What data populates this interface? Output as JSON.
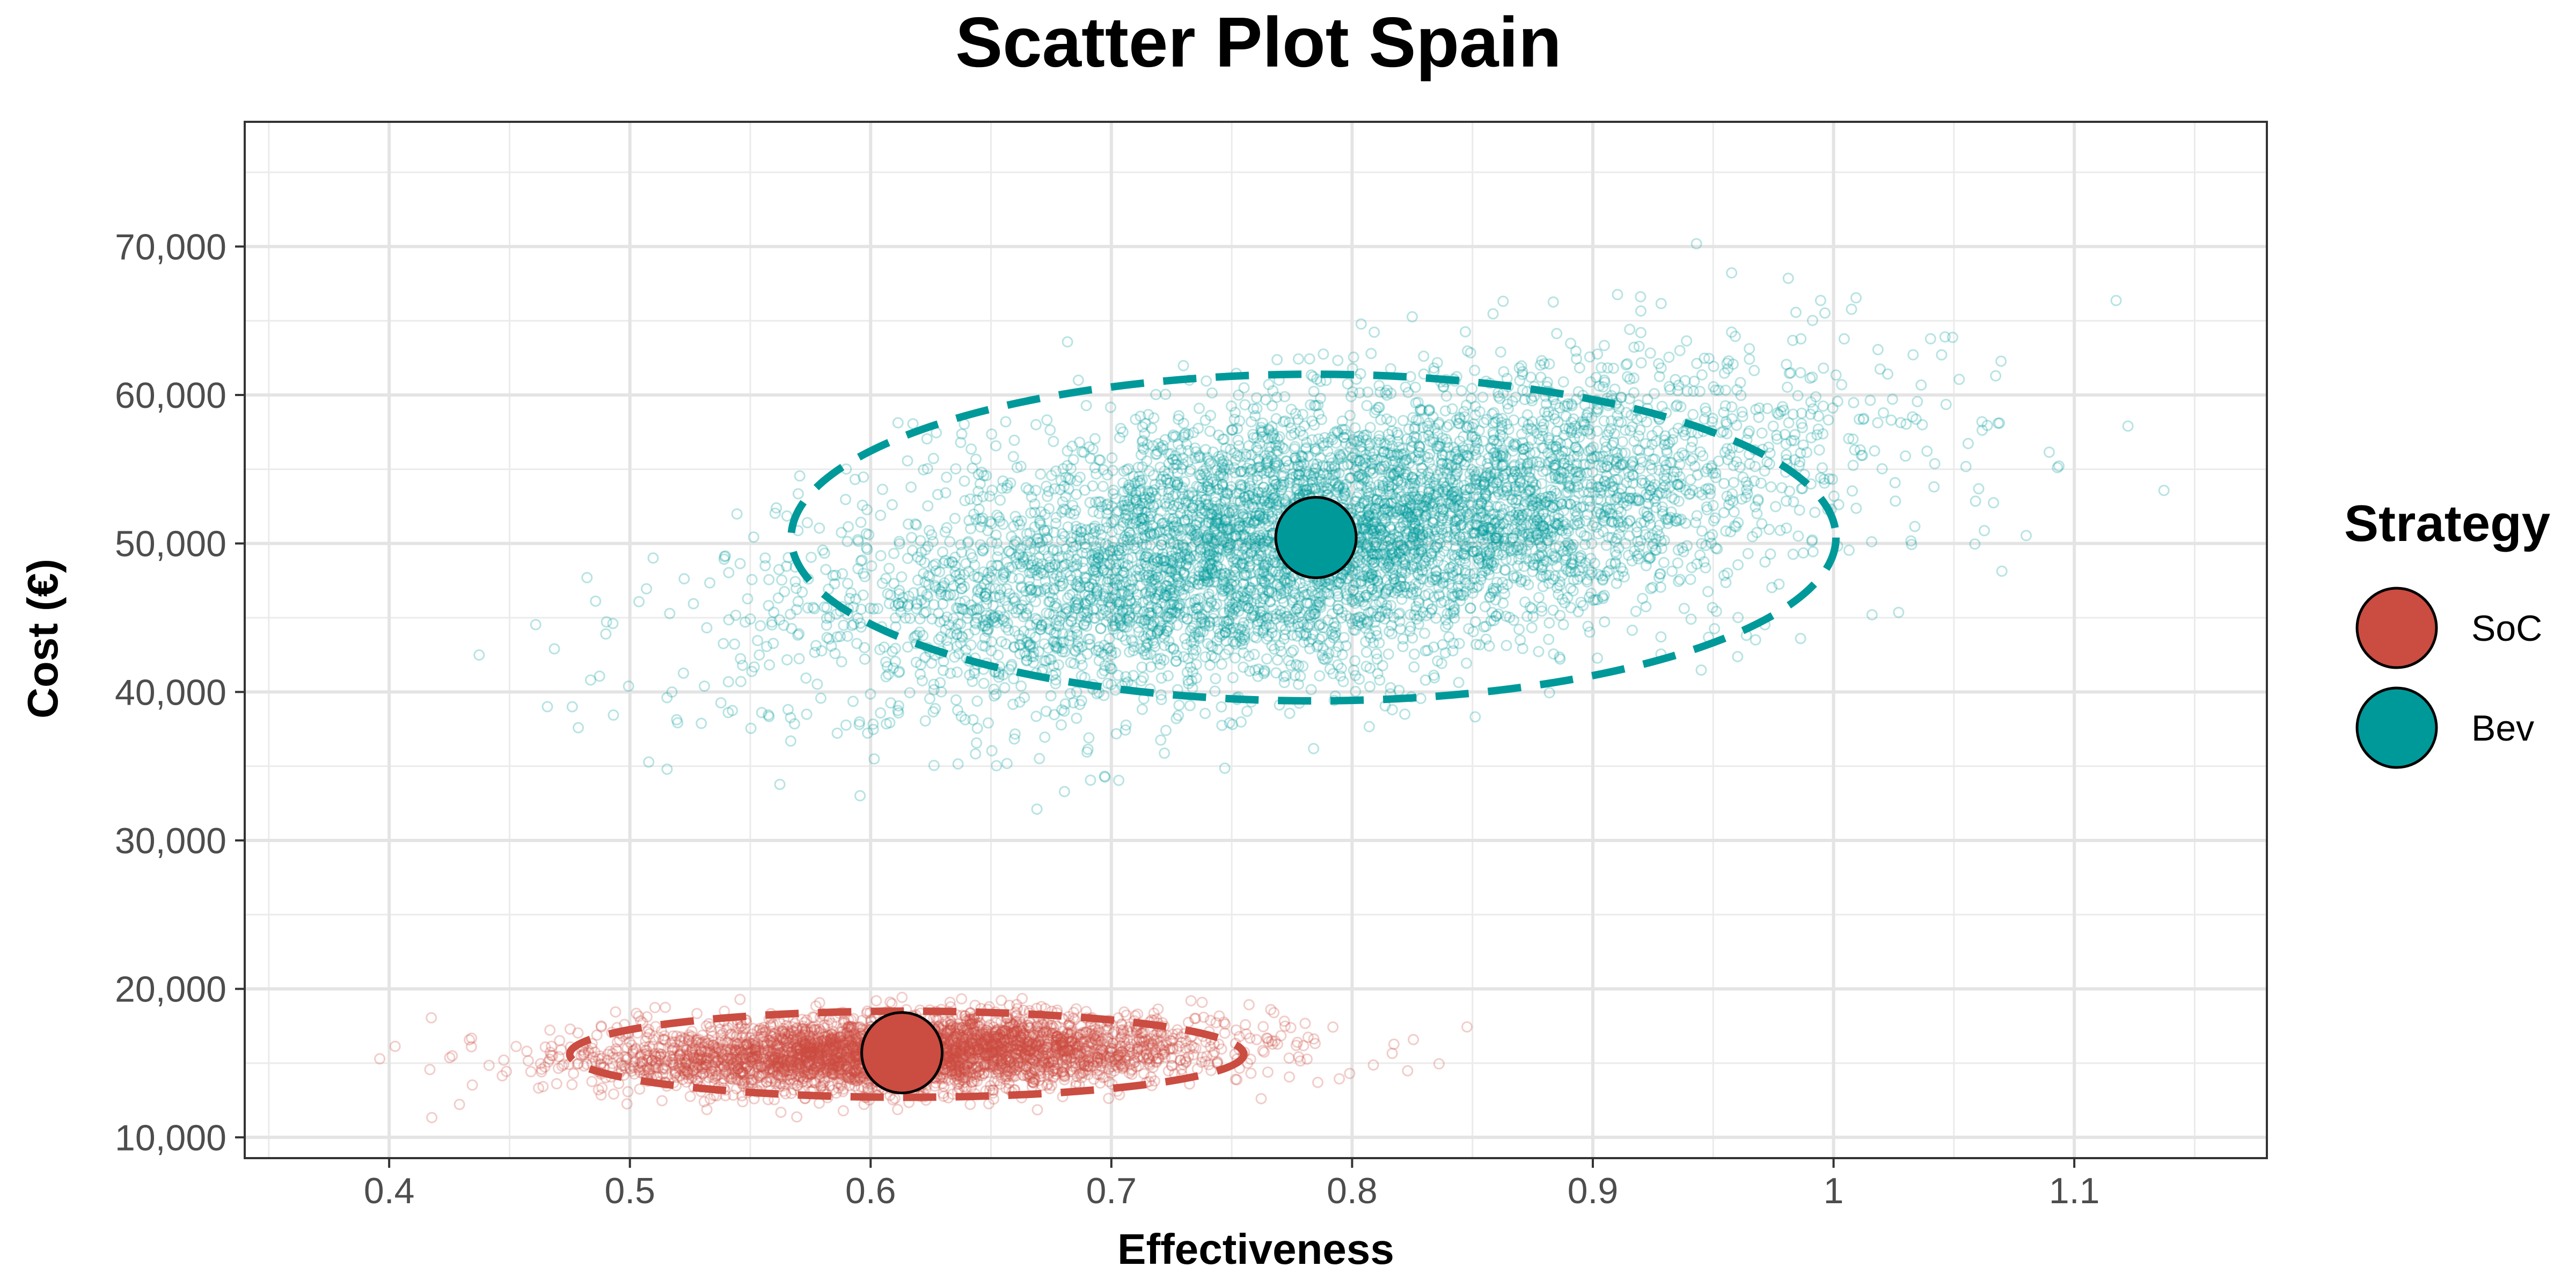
{
  "chart_data": {
    "type": "scatter",
    "title": "Scatter Plot Spain",
    "xlabel": "Effectiveness",
    "ylabel": "Cost (€)",
    "xlim": [
      0.34,
      1.18
    ],
    "ylim": [
      8600,
      78400
    ],
    "x_ticks": [
      {
        "value": 0.4,
        "label": "0.4"
      },
      {
        "value": 0.5,
        "label": "0.5"
      },
      {
        "value": 0.6,
        "label": "0.6"
      },
      {
        "value": 0.7,
        "label": "0.7"
      },
      {
        "value": 0.8,
        "label": "0.8"
      },
      {
        "value": 0.9,
        "label": "0.9"
      },
      {
        "value": 1.0,
        "label": "1"
      },
      {
        "value": 1.1,
        "label": "1.1"
      }
    ],
    "y_ticks": [
      {
        "value": 10000,
        "label": "10,000"
      },
      {
        "value": 20000,
        "label": "20,000"
      },
      {
        "value": 30000,
        "label": "30,000"
      },
      {
        "value": 40000,
        "label": "40,000"
      },
      {
        "value": 50000,
        "label": "50,000"
      },
      {
        "value": 60000,
        "label": "60,000"
      },
      {
        "value": 70000,
        "label": "70,000"
      }
    ],
    "grid": true,
    "legend": {
      "title": "Strategy",
      "position": "right"
    },
    "series": [
      {
        "name": "SoC",
        "color": "#CB4C41",
        "mean": {
          "x": 0.613,
          "y": 15700
        },
        "sd": {
          "x": 0.062,
          "y": 1200
        },
        "correlation": 0.2,
        "n_points": 4000,
        "ellipse": {
          "cx": 0.615,
          "cy": 15600,
          "rx": 0.14,
          "ry": 2900,
          "tilt_deg": 0
        }
      },
      {
        "name": "Bev",
        "color": "#00999A",
        "mean": {
          "x": 0.785,
          "y": 50400
        },
        "sd": {
          "x": 0.098,
          "y": 5200
        },
        "correlation": 0.5,
        "n_points": 6000,
        "ellipse": {
          "cx": 0.784,
          "cy": 50400,
          "rx": 0.217,
          "ry": 11000,
          "tilt_deg": 0
        }
      }
    ]
  }
}
